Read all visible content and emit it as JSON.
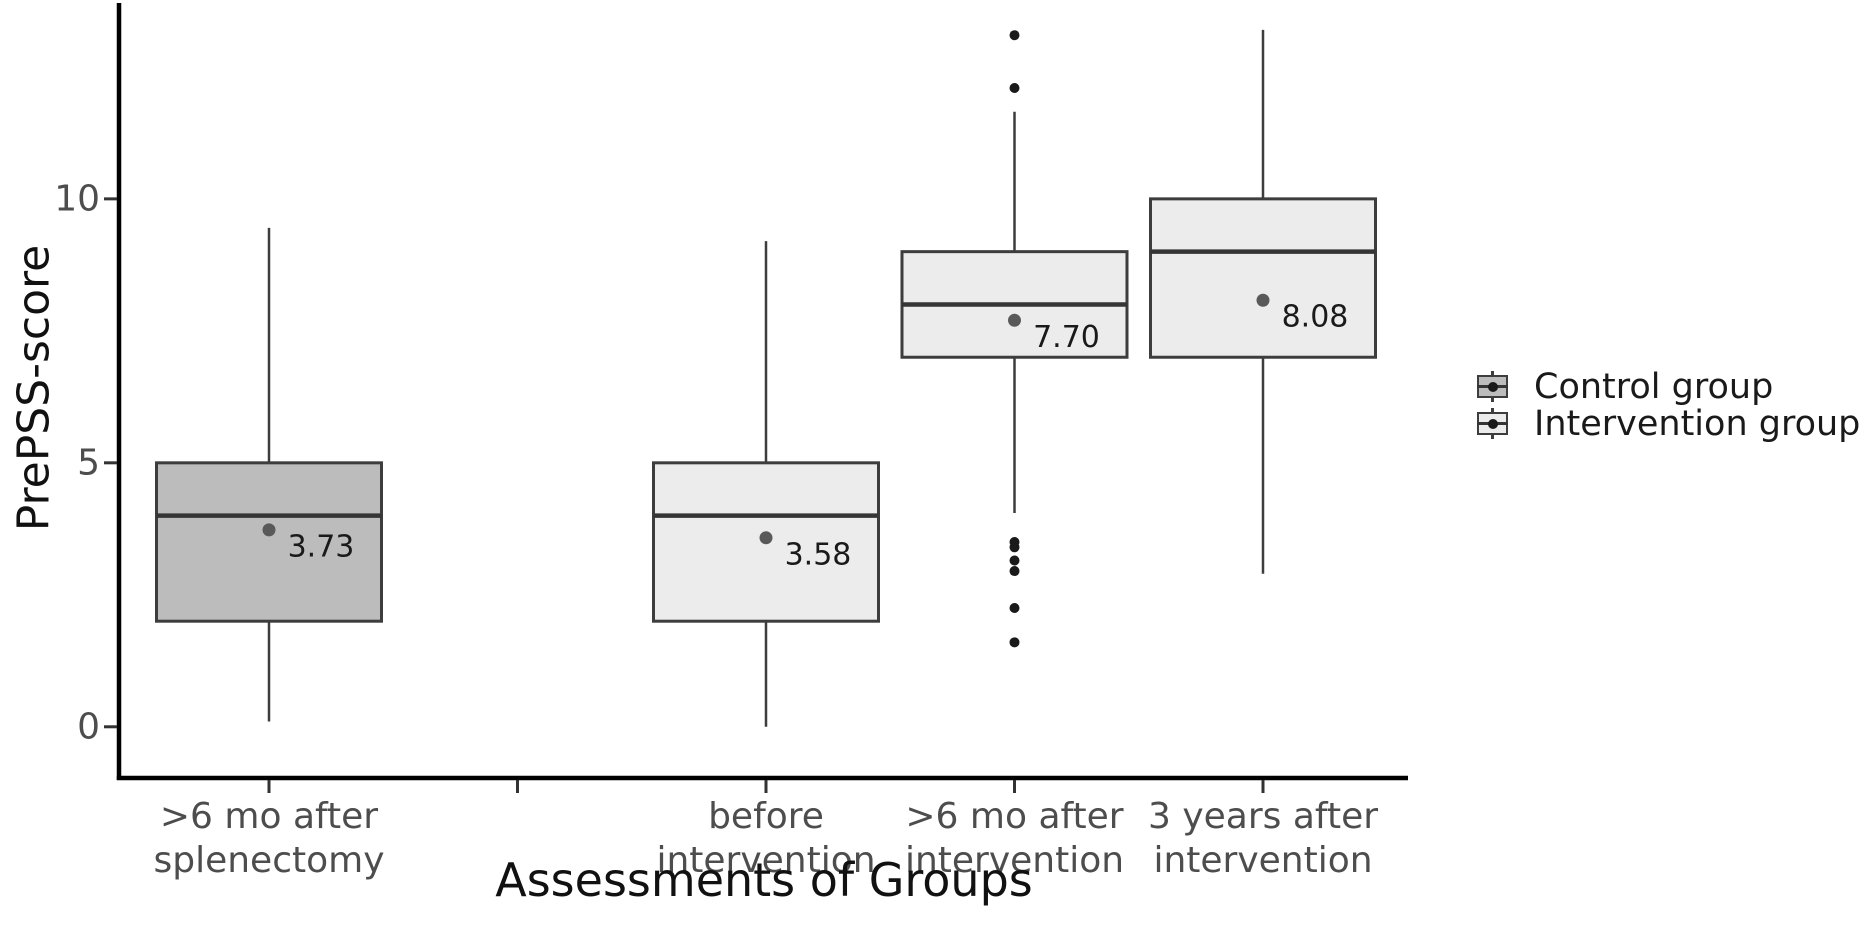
{
  "chart_data": {
    "type": "boxplot",
    "title": "",
    "xlabel": "Assessments of Groups",
    "ylabel": "PrePSS-score",
    "ylim": [
      -0.97,
      13.71
    ],
    "yticks": [
      {
        "value": 0,
        "label": "0"
      },
      {
        "value": 5,
        "label": "5"
      },
      {
        "value": 10,
        "label": "10"
      }
    ],
    "grid": false,
    "legend_position": "right",
    "categories": [
      {
        "lines": [
          ">6 mo after",
          "splenectomy"
        ]
      },
      {
        "lines": []
      },
      {
        "lines": [
          "before",
          "intervention"
        ]
      },
      {
        "lines": [
          ">6 mo after",
          "intervention"
        ]
      },
      {
        "lines": [
          "3 years after",
          "intervention"
        ]
      }
    ],
    "legend": [
      {
        "label": "Control group",
        "fill_key": "control_fill"
      },
      {
        "label": "Intervention group",
        "fill_key": "intervention_fill"
      }
    ],
    "boxes": [
      {
        "group": "Control group",
        "category_index": 0,
        "whisker_low": 0.1,
        "q1": 2,
        "median": 4,
        "q3": 5,
        "whisker_high": 9.45,
        "mean": 3.73,
        "mean_label": "3.73",
        "outliers": [],
        "fill_key": "control_fill"
      },
      {
        "group": "Intervention group",
        "category_index": 2,
        "whisker_low": 0.0,
        "q1": 2,
        "median": 4,
        "q3": 5,
        "whisker_high": 9.2,
        "mean": 3.58,
        "mean_label": "3.58",
        "outliers": [],
        "fill_key": "intervention_fill"
      },
      {
        "group": "Intervention group",
        "category_index": 3,
        "whisker_low": 4.05,
        "q1": 7,
        "median": 8,
        "q3": 9,
        "whisker_high": 11.65,
        "mean": 7.7,
        "mean_label": "7.70",
        "outliers": [
          13.1,
          12.1,
          3.5,
          3.4,
          3.15,
          2.95,
          2.25,
          1.6
        ],
        "fill_key": "intervention_fill"
      },
      {
        "group": "Intervention group",
        "category_index": 4,
        "whisker_low": 2.9,
        "q1": 7,
        "median": 9,
        "q3": 10,
        "whisker_high": 13.2,
        "mean": 8.08,
        "mean_label": "8.08",
        "outliers": [],
        "fill_key": "intervention_fill"
      }
    ],
    "colors": {
      "control_fill": "#bcbcbc",
      "intervention_fill": "#ececec",
      "box_border": "#3d3d3d",
      "median_line": "#353535",
      "whisker": "#3d3d3d",
      "mean_dot": "#595959",
      "outlier_dot": "#1a1a1a",
      "axis_line": "#000000",
      "tick_mark": "#333333",
      "tick_label": "#4d4d4d",
      "mean_label": "#1a1a1a",
      "axis_title": "#111111"
    }
  }
}
